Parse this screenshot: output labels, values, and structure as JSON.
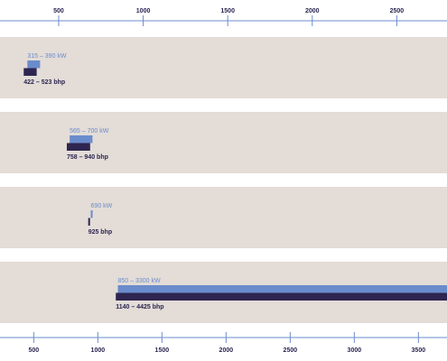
{
  "colors": {
    "background": "#ffffff",
    "band": "#e3dcd7",
    "kw_bar": "#6b8ccc",
    "bhp_bar": "#2e2650",
    "kw_text": "#6b8ccc",
    "bhp_text": "#2a2550",
    "axis": "#6b8ccc"
  },
  "chart_data": {
    "type": "bar",
    "orientation": "horizontal",
    "title": "",
    "grid": false,
    "legend": "none",
    "top_axis": {
      "unit": "kW",
      "ticks": [
        500,
        1000,
        1500,
        2000,
        2500
      ],
      "tick_labels": [
        "500",
        "1000",
        "1500",
        "2000",
        "2500"
      ],
      "range": [
        153,
        2797
      ]
    },
    "bottom_axis": {
      "unit": "bhp",
      "ticks": [
        500,
        1000,
        1500,
        2000,
        2500,
        3000,
        3500
      ],
      "tick_labels": [
        "500",
        "1000",
        "1500",
        "2000",
        "2500",
        "3000",
        "3500"
      ],
      "range": [
        237,
        3723
      ]
    },
    "rows": [
      {
        "kw_range": [
          315,
          390
        ],
        "bhp_range": [
          422,
          523
        ],
        "kw_label": "315 – 390 kW",
        "bhp_label": "422 – 523 bhp"
      },
      {
        "kw_range": [
          565,
          700
        ],
        "bhp_range": [
          758,
          940
        ],
        "kw_label": "565 – 700 kW",
        "bhp_label": "758 – 940 bhp"
      },
      {
        "kw_range": [
          690,
          690
        ],
        "bhp_range": [
          925,
          925
        ],
        "kw_label": "690 kW",
        "bhp_label": "925 bhp"
      },
      {
        "kw_range": [
          850,
          3300
        ],
        "bhp_range": [
          1140,
          4425
        ],
        "kw_label": "850 – 3300 kW",
        "bhp_label": "1140 – 4425 bhp"
      }
    ]
  }
}
